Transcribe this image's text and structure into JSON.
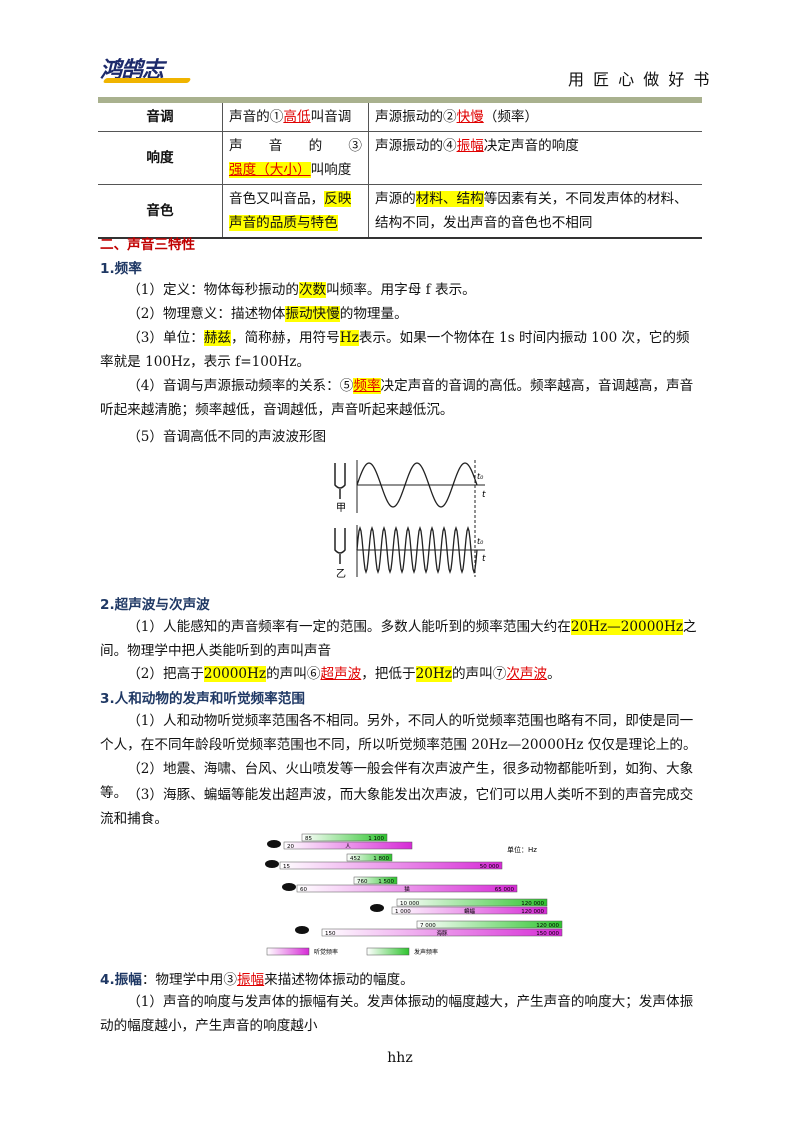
{
  "header": {
    "logo": "鸿鹄志",
    "slogan": "用 匠 心 做 好 书"
  },
  "table": {
    "rows": [
      [
        "音调",
        [
          "声音的①",
          "高低",
          "叫音调"
        ],
        [
          "声源振动的②",
          "快慢",
          "（频率）"
        ]
      ],
      [
        "响度",
        [
          "声音的③",
          "强度（大小）",
          "叫响度"
        ],
        [
          "声源振动的④",
          "振幅",
          "决定声音的响度"
        ]
      ],
      [
        "音色",
        [
          "音色又叫音品，",
          "反映声音的品质与特色"
        ],
        [
          "声源的",
          "材料、结构",
          "等因素有关，不同发声体的材料、结构不同，发出声音的音色也不相同"
        ]
      ]
    ]
  },
  "section": {
    "title": "二、声音三特性",
    "s1": {
      "title": "1.频率",
      "paragraphs": [
        [
          "（1）定义：物体每秒振动的",
          "次数",
          "叫频率。用字母 f 表示。"
        ],
        [
          "（2）物理意义：描述物体",
          "振动快慢",
          "的物理量。"
        ],
        [
          "（3）单位：",
          "赫兹",
          "，简称赫，用符号",
          "Hz",
          "表示。如果一个物体在 1s 时间内振动 100 次，它的频率就是 100Hz，表示 f=100Hz。"
        ],
        [
          "（4）音调与声源振动频率的关系：⑤",
          "频率",
          "决定声音的音调的高低。频率越高，音调越高，声音听起来越清脆；频率越低，音调越低，声音听起来越低沉。"
        ],
        [
          "（5）音调高低不同的声波波形图"
        ]
      ]
    },
    "wave_figure": {
      "top_label": "甲",
      "bottom_label": "乙",
      "axis": "t",
      "marker": "t₀"
    },
    "s2": {
      "title": "2.超声波与次声波",
      "paragraphs": [
        [
          "（1）人能感知的声音频率有一定的范围。多数人能听到的频率范围大约在",
          "20Hz—20000Hz",
          "之间。物理学中把人类能听到的声叫声音"
        ],
        [
          "（2）把高于",
          "20000Hz",
          "的声叫⑥",
          "超声波",
          "，把低于",
          "20Hz",
          "的声叫⑦",
          "次声波",
          "。"
        ]
      ]
    },
    "s3": {
      "title": "3.人和动物的发声和听觉频率范围",
      "paragraphs": [
        "（1）人和动物听觉频率范围各不相同。另外，不同人的听觉频率范围也略有不同，即使是同一个人，在不同年龄段听觉频率范围也不同，所以听觉频率范围 20Hz—20000Hz 仅仅是理论上的。",
        "（2）地震、海啸、台风、火山喷发等一般会伴有次声波产生，很多动物都能听到，如狗、大象等。",
        "（3）海豚、蝙蝠等能发出超声波，而大象能发出次声波，它们可以用人类听不到的声音完成交流和捕食。"
      ]
    },
    "hearing_figure": {
      "unit": "单位：Hz",
      "legend": [
        "听觉频率",
        "发声频率"
      ],
      "rows": [
        {
          "emit_low": "85",
          "emit_high": "1 100",
          "hear_low": "20",
          "animal": "人"
        },
        {
          "emit_low": "452",
          "emit_high": "1 800",
          "hear_low": "15",
          "hear_high": "50 000"
        },
        {
          "emit_low": "760",
          "emit_high": "1 500",
          "hear_low": "60",
          "animal": "猫",
          "hear_high": "65 000"
        },
        {
          "emit_low": "10 000",
          "emit_high": "120 000",
          "hear_low": "1 000",
          "animal": "蝙蝠",
          "hear_high": "120 000"
        },
        {
          "emit_low": "7 000",
          "emit_high": "120 000",
          "hear_low": "150",
          "animal": "海豚",
          "hear_high": "150 000"
        }
      ]
    },
    "s4": {
      "title": "4.振幅",
      "lead": [
        "：物理学中用③",
        "振幅",
        "来描述物体振动的幅度。"
      ],
      "paragraphs": [
        "（1）声音的响度与发声体的振幅有关。发声体振动的幅度越大，产生声音的响度大；发声体振动的幅度越小，产生声音的响度越小"
      ]
    }
  },
  "footer": "hhz"
}
